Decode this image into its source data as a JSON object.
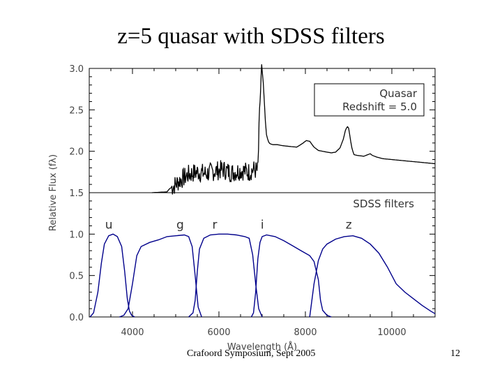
{
  "slide": {
    "title": "z=5 quasar with SDSS filters",
    "footer_left": "Crafoord Symposium, Sept 2005",
    "slide_number": "12"
  },
  "chart_data": {
    "type": "line",
    "xlabel": "Wavelength (Å)",
    "ylabel": "Relative Flux (fλ)",
    "xlim": [
      3000,
      11000
    ],
    "ylim": [
      0.0,
      3.0
    ],
    "x_ticks": [
      4000,
      6000,
      8000,
      10000
    ],
    "x_tick_labels": [
      "4000",
      "6000",
      "8000",
      "10000"
    ],
    "y_ticks": [
      0.0,
      0.5,
      1.0,
      1.5,
      2.0,
      2.5,
      3.0
    ],
    "y_tick_labels": [
      "0.0",
      "0.5",
      "1.0",
      "1.5",
      "2.0",
      "2.5",
      "3.0"
    ],
    "separator_y": 1.5,
    "legend": {
      "line1": "Quasar",
      "line2": "Redshift = 5.0",
      "placement": "top-right"
    },
    "filters_label": "SDSS filters",
    "quasar": {
      "name": "Quasar spectrum",
      "color": "#000000",
      "x": [
        4450,
        4800,
        4860,
        4950,
        5100,
        5300,
        5500,
        5700,
        5900,
        6100,
        6300,
        6500,
        6700,
        6800,
        6900,
        6950,
        6990,
        7010,
        7040,
        7070,
        7100,
        7140,
        7180,
        7250,
        7350,
        7450,
        7600,
        7800,
        7950,
        8020,
        8100,
        8200,
        8300,
        8400,
        8500,
        8600,
        8700,
        8800,
        8880,
        8930,
        8970,
        9000,
        9030,
        9070,
        9120,
        9200,
        9350,
        9450,
        9500,
        9550,
        9650,
        9800,
        10000,
        10200,
        10400,
        10600,
        10800,
        11000
      ],
      "y": [
        1.5,
        1.51,
        1.55,
        1.58,
        1.65,
        1.72,
        1.75,
        1.73,
        1.76,
        1.78,
        1.74,
        1.77,
        1.75,
        1.78,
        1.76,
        2.6,
        3.0,
        2.95,
        2.7,
        2.4,
        2.2,
        2.12,
        2.09,
        2.08,
        2.08,
        2.07,
        2.06,
        2.05,
        2.1,
        2.13,
        2.12,
        2.05,
        2.01,
        2.0,
        1.99,
        1.98,
        1.99,
        2.04,
        2.15,
        2.26,
        2.3,
        2.28,
        2.18,
        2.05,
        1.96,
        1.95,
        1.94,
        1.96,
        1.97,
        1.95,
        1.93,
        1.91,
        1.9,
        1.89,
        1.88,
        1.87,
        1.86,
        1.85
      ],
      "noise_range": [
        4900,
        6990
      ]
    },
    "filters": [
      {
        "name": "u",
        "color": "#00008b",
        "x": [
          3020,
          3100,
          3200,
          3280,
          3350,
          3450,
          3550,
          3650,
          3750,
          3820,
          3880,
          3930,
          3980,
          4050
        ],
        "y": [
          0.0,
          0.05,
          0.3,
          0.65,
          0.88,
          0.98,
          1.0,
          0.97,
          0.85,
          0.55,
          0.22,
          0.07,
          0.02,
          0.0
        ]
      },
      {
        "name": "g",
        "color": "#00008b",
        "x": [
          3700,
          3800,
          3900,
          4000,
          4100,
          4200,
          4400,
          4600,
          4800,
          5000,
          5200,
          5300,
          5380,
          5450,
          5520,
          5600
        ],
        "y": [
          0.0,
          0.02,
          0.1,
          0.4,
          0.74,
          0.85,
          0.9,
          0.93,
          0.97,
          0.98,
          0.99,
          0.97,
          0.85,
          0.5,
          0.12,
          0.0
        ]
      },
      {
        "name": "r",
        "color": "#00008b",
        "x": [
          5300,
          5400,
          5450,
          5500,
          5550,
          5650,
          5800,
          6000,
          6200,
          6400,
          6600,
          6700,
          6780,
          6850,
          6920,
          7000
        ],
        "y": [
          0.0,
          0.05,
          0.2,
          0.55,
          0.82,
          0.95,
          0.99,
          1.0,
          1.0,
          0.99,
          0.97,
          0.95,
          0.75,
          0.4,
          0.1,
          0.0
        ]
      },
      {
        "name": "i",
        "color": "#00008b",
        "x": [
          6750,
          6800,
          6850,
          6900,
          6950,
          7000,
          7100,
          7300,
          7500,
          7700,
          7900,
          8100,
          8200,
          8300,
          8350,
          8400,
          8500,
          8600
        ],
        "y": [
          0.0,
          0.05,
          0.3,
          0.7,
          0.9,
          0.97,
          0.99,
          0.97,
          0.92,
          0.86,
          0.8,
          0.74,
          0.67,
          0.45,
          0.2,
          0.08,
          0.02,
          0.0
        ]
      },
      {
        "name": "z",
        "color": "#00008b",
        "x": [
          8100,
          8200,
          8300,
          8400,
          8500,
          8700,
          8900,
          9100,
          9300,
          9500,
          9700,
          9900,
          10100,
          10300,
          10500,
          10700,
          10900,
          11000
        ],
        "y": [
          0.0,
          0.4,
          0.68,
          0.82,
          0.88,
          0.94,
          0.97,
          0.98,
          0.95,
          0.88,
          0.77,
          0.6,
          0.4,
          0.3,
          0.22,
          0.14,
          0.07,
          0.04
        ]
      }
    ]
  }
}
